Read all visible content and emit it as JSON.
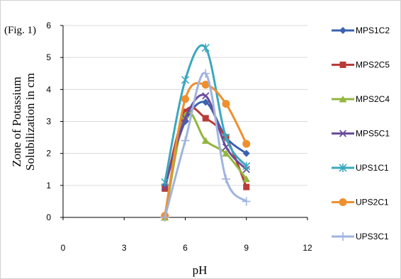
{
  "chart_data": {
    "type": "line",
    "title": "",
    "annotation": "(Fig. 1)",
    "xlabel": "pH",
    "ylabel_lines": [
      "Zone of Potassium",
      "Solubilization in cm"
    ],
    "xlim": [
      0,
      12
    ],
    "ylim": [
      0,
      6
    ],
    "x_ticks": [
      0,
      3,
      6,
      9,
      12
    ],
    "y_ticks": [
      0,
      1,
      2,
      3,
      4,
      5,
      6
    ],
    "smooth": true,
    "legend_position": "right",
    "series": [
      {
        "name": "MPS1C2",
        "color": "#3a63b0",
        "marker": "diamond",
        "x": [
          5,
          6,
          7,
          8,
          9
        ],
        "y": [
          1.0,
          3.0,
          3.6,
          2.5,
          2.0
        ]
      },
      {
        "name": "MPS2C5",
        "color": "#b83c38",
        "marker": "square",
        "x": [
          5,
          6,
          7,
          8,
          9
        ],
        "y": [
          0.9,
          3.3,
          3.1,
          2.5,
          0.95
        ]
      },
      {
        "name": "MPS2C4",
        "color": "#92b63e",
        "marker": "triangle",
        "x": [
          5,
          6,
          7,
          8,
          9
        ],
        "y": [
          0.0,
          3.2,
          2.4,
          2.0,
          1.2
        ]
      },
      {
        "name": "MPS5C1",
        "color": "#6b4c9a",
        "marker": "x",
        "x": [
          5,
          6,
          7,
          8,
          9
        ],
        "y": [
          0.95,
          3.1,
          3.8,
          2.2,
          1.5
        ]
      },
      {
        "name": "UPS1C1",
        "color": "#3ba8bd",
        "marker": "star",
        "x": [
          5,
          6,
          7,
          8,
          9
        ],
        "y": [
          1.1,
          4.3,
          5.3,
          2.5,
          1.6
        ]
      },
      {
        "name": "UPS2C1",
        "color": "#ef8f2e",
        "marker": "circle",
        "x": [
          5,
          6,
          7,
          8,
          9
        ],
        "y": [
          0.05,
          3.7,
          4.15,
          3.55,
          2.3
        ]
      },
      {
        "name": "UPS3C1",
        "color": "#a0b4de",
        "marker": "plus",
        "x": [
          5,
          6,
          7,
          8,
          9
        ],
        "y": [
          0.0,
          2.4,
          4.5,
          1.2,
          0.5
        ]
      }
    ]
  }
}
